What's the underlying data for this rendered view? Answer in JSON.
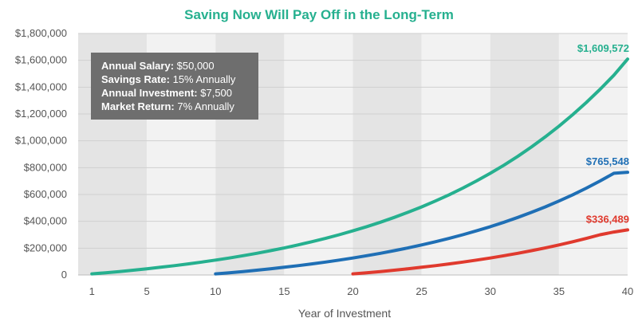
{
  "chart_data": {
    "type": "line",
    "title": "Saving Now Will Pay Off in the Long-Term",
    "xlabel": "Year of Investment",
    "ylabel": "",
    "xlim": [
      0,
      40
    ],
    "ylim": [
      0,
      1800000
    ],
    "x_ticks": [
      1,
      5,
      10,
      15,
      20,
      25,
      30,
      35,
      40
    ],
    "y_ticks": [
      {
        "value": 0,
        "label": "0"
      },
      {
        "value": 200000,
        "label": "$200,000"
      },
      {
        "value": 400000,
        "label": "$400,000"
      },
      {
        "value": 600000,
        "label": "$600,000"
      },
      {
        "value": 800000,
        "label": "$800,000"
      },
      {
        "value": 1000000,
        "label": "$1,000,000"
      },
      {
        "value": 1200000,
        "label": "$1,200,000"
      },
      {
        "value": 1400000,
        "label": "$1,400,000"
      },
      {
        "value": 1600000,
        "label": "$1,600,000"
      },
      {
        "value": 1800000,
        "label": "$1,800,000"
      }
    ],
    "grid": true,
    "banded_background": true,
    "series": [
      {
        "color": "#26b08f",
        "end_label": "$1,609,572",
        "x": [
          1,
          2,
          3,
          4,
          5,
          6,
          7,
          8,
          9,
          10,
          11,
          12,
          13,
          14,
          15,
          16,
          17,
          18,
          19,
          20,
          21,
          22,
          23,
          24,
          25,
          26,
          27,
          28,
          29,
          30,
          31,
          32,
          33,
          34,
          35,
          36,
          37,
          38,
          39,
          40
        ],
        "values": [
          8025,
          16612,
          25800,
          35631,
          46150,
          57406,
          69449,
          82336,
          96124,
          110877,
          126661,
          143552,
          161624,
          180962,
          201653,
          223789,
          247474,
          272816,
          299929,
          328948,
          359989,
          393208,
          428752,
          466780,
          507467,
          551005,
          597595,
          647437,
          700769,
          757823,
          818878,
          884216,
          954118,
          1028905,
          1108925,
          1194544,
          1286155,
          1384185,
          1489079,
          1609572
        ]
      },
      {
        "color": "#1f6fb5",
        "end_label": "$765,548",
        "x": [
          10,
          11,
          12,
          13,
          14,
          15,
          16,
          17,
          18,
          19,
          20,
          21,
          22,
          23,
          24,
          25,
          26,
          27,
          28,
          29,
          30,
          31,
          32,
          33,
          34,
          35,
          36,
          37,
          38,
          39,
          40
        ],
        "values": [
          8025,
          16612,
          25800,
          35631,
          46150,
          57406,
          69449,
          82336,
          96124,
          110877,
          126661,
          143552,
          161624,
          180962,
          201653,
          223789,
          247474,
          272816,
          299929,
          328948,
          359989,
          393208,
          428752,
          466780,
          507467,
          551005,
          597595,
          647437,
          700769,
          757823,
          765548
        ]
      },
      {
        "color": "#e03a2e",
        "end_label": "$336,489",
        "x": [
          20,
          21,
          22,
          23,
          24,
          25,
          26,
          27,
          28,
          29,
          30,
          31,
          32,
          33,
          34,
          35,
          36,
          37,
          38,
          39,
          40
        ],
        "values": [
          8025,
          16612,
          25800,
          35631,
          46150,
          57406,
          69449,
          82336,
          96124,
          110877,
          126661,
          143552,
          161624,
          180962,
          201653,
          223789,
          247474,
          272816,
          299929,
          320000,
          336489
        ]
      }
    ],
    "annotation_box": {
      "lines": [
        {
          "label": "Annual Salary:",
          "value": "$50,000"
        },
        {
          "label": "Savings Rate:",
          "value": "15% Annually"
        },
        {
          "label": "Annual Investment:",
          "value": "$7,500"
        },
        {
          "label": "Market Return:",
          "value": "7% Annually"
        }
      ]
    },
    "colors": {
      "title": "#26b08f",
      "band_light": "#f2f2f2",
      "band_dark": "#e4e4e4",
      "grid": "#cfcfcf",
      "box_bg": "#6e6e6e",
      "text": "#555555"
    }
  }
}
